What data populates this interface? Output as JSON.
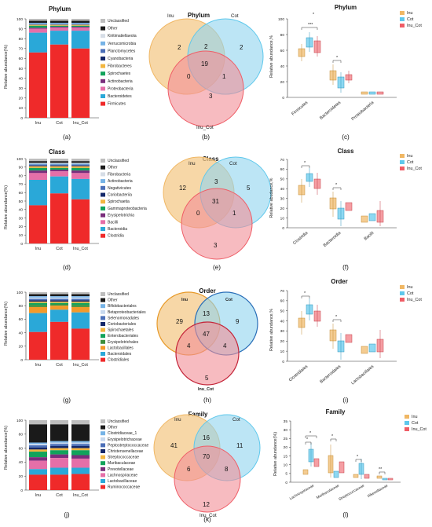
{
  "palette": {
    "inu": "#f0b764",
    "cot": "#5ec8ec",
    "inu_cot": "#ef5d66",
    "venn_inu": "#f4c98a",
    "venn_cot": "#8fd3ef",
    "venn_inu_cot": "#f28e96"
  },
  "box_legend": [
    "Inu",
    "Cot",
    "Inu_Cot"
  ],
  "bar_groups": [
    "Inu",
    "Cot",
    "Inu_Cot"
  ],
  "panels": {
    "a": {
      "label": "(a)",
      "title": "Phylum",
      "ylabel": "Relative abundance(%)",
      "yticks": [
        "0",
        "10",
        "20",
        "30",
        "40",
        "50",
        "60",
        "70",
        "80",
        "90",
        "100"
      ],
      "legend": [
        "Unclassified",
        "Other",
        "Kiritimatiellaeota",
        "Verrucomicrobia",
        "Planctomycetes",
        "Cyanobacteria",
        "Fibrobacteres",
        "Spirochaetes",
        "Actinobacteria",
        "Proteobacteria",
        "Bacteroidetes",
        "Firmicutes"
      ]
    },
    "b": {
      "label": "(b)",
      "title": "Phylum",
      "sets": [
        "Inu",
        "Cot",
        "Inu_Cot"
      ],
      "counts": {
        "only_a": "2",
        "only_b": "2",
        "only_c": "3",
        "ab": "2",
        "ac": "0",
        "bc": "1",
        "abc": "19"
      }
    },
    "c": {
      "label": "(c)",
      "title": "Phylum",
      "ylabel": "Relative abundance,%",
      "yticks": [
        "0",
        "20",
        "40",
        "60",
        "80",
        "100"
      ],
      "categories": [
        "Firmicutes",
        "Bacteroidetes",
        "Proteobacteria"
      ],
      "sig": [
        "***",
        "*",
        "*"
      ]
    },
    "d": {
      "label": "(d)",
      "title": "Class",
      "ylabel": "Relative abundance(%)",
      "yticks": [
        "0",
        "10",
        "20",
        "30",
        "40",
        "50",
        "60",
        "70",
        "80",
        "90",
        "100"
      ],
      "legend": [
        "Unclassified",
        "Other",
        "Fibrobacteria",
        "Actinobacteria",
        "Negativicutes",
        "Coriobacteriia",
        "Spirochaetia",
        "Gammaproteobacteria",
        "Erysipelotrichia",
        "Bacilli",
        "Bacteroidia",
        "Clostridia"
      ]
    },
    "e": {
      "label": "(e)",
      "title": "Class",
      "sets": [
        "Inu",
        "Cot",
        "Inu_Cot"
      ],
      "counts": {
        "only_a": "12",
        "only_b": "5",
        "only_c": "3",
        "ab": "3",
        "ac": "0",
        "bc": "1",
        "abc": "31"
      }
    },
    "f": {
      "label": "(f)",
      "title": "Class",
      "ylabel": "Relative abudance,%",
      "yticks": [
        "0",
        "10",
        "20",
        "30",
        "40",
        "50",
        "60",
        "70"
      ],
      "categories": [
        "Clostridia",
        "Bacteroidia",
        "Bacilli"
      ],
      "sig": [
        "*",
        "*"
      ]
    },
    "g": {
      "label": "(g)",
      "title": "Order",
      "ylabel": "Relative abundance(%)",
      "yticks": [
        "0",
        "20",
        "40",
        "60",
        "80",
        "100"
      ],
      "legend": [
        "Unclassified",
        "Other",
        "Bifidobacteriales",
        "Betaproteobacteriales",
        "Selenomonadales",
        "Coriobacteriales",
        "Spirochaetales",
        "Enterobacteriales",
        "Erysipelotrichales",
        "Lactobacillales",
        "Bacteroidales",
        "Clostridiales"
      ]
    },
    "h": {
      "label": "(h)",
      "title": "Order",
      "sets": [
        "Inu",
        "Cot",
        "Inu_Cot"
      ],
      "counts": {
        "only_a": "29",
        "only_b": "9",
        "only_c": "5",
        "ab": "13",
        "ac": "4",
        "bc": "4",
        "abc": "47"
      }
    },
    "i": {
      "label": "(i)",
      "title": "Order",
      "ylabel": "Relative abundance,%",
      "yticks": [
        "0",
        "10",
        "20",
        "30",
        "40",
        "50",
        "60",
        "70"
      ],
      "categories": [
        "Clostridiales",
        "Bacteroidales",
        "Lactobacillales"
      ],
      "sig": [
        "*",
        "*"
      ]
    },
    "j": {
      "label": "(j)",
      "title": "Family",
      "ylabel": "Relative abundance(%)",
      "yticks": [
        "0",
        "20",
        "40",
        "60",
        "80",
        "100"
      ],
      "legend": [
        "Unclassified",
        "Other",
        "Clostridiaceae_1",
        "Erysipelotrichaceae",
        "Peptostreptococcaceae",
        "Christensenellaceae",
        "Streptococcaceae",
        "Muribaculaceae",
        "Prevotellaceae",
        "Lachnospiraceae",
        "Lactobacillaceae",
        "Ruminococcaceae"
      ]
    },
    "k": {
      "label": "(k)",
      "title": "Family",
      "sets": [
        "Inu",
        "Cot",
        "Inu_Cot"
      ],
      "counts": {
        "only_a": "41",
        "only_b": "11",
        "only_c": "12",
        "ab": "16",
        "ac": "6",
        "bc": "8",
        "abc": "70"
      }
    },
    "l": {
      "label": "(l)",
      "title": "Family",
      "ylabel": "Relative abundance(%)",
      "yticks": [
        "0",
        "5",
        "10",
        "15",
        "20",
        "25",
        "30",
        "35"
      ],
      "categories": [
        "Lachnospiraceae",
        "Muribaculaceae",
        "Streptococcaceae",
        "Rikenellaceae"
      ],
      "sig": [
        "*",
        "*",
        "*",
        "*",
        "**"
      ]
    }
  },
  "stack_colors": {
    "phylum": [
      "#bdbdbd",
      "#1a1a1a",
      "#d6dde6",
      "#76b3e6",
      "#4b6fb8",
      "#14286a",
      "#f2b640",
      "#12a35b",
      "#7a2e7c",
      "#e56fa8",
      "#2aa8d8",
      "#ef2a2a"
    ],
    "class": [
      "#bdbdbd",
      "#1a1a1a",
      "#d6dde6",
      "#76b3e6",
      "#4b6fb8",
      "#14286a",
      "#f2b640",
      "#12a35b",
      "#7a2e7c",
      "#e56fa8",
      "#2aa8d8",
      "#ef2a2a"
    ],
    "order": [
      "#bdbdbd",
      "#1a1a1a",
      "#76b3e6",
      "#c8d9ee",
      "#4b6fb8",
      "#14286a",
      "#f2b640",
      "#12a35b",
      "#3d8f3d",
      "#f39a2a",
      "#2aa8d8",
      "#ef2a2a"
    ],
    "family": [
      "#bdbdbd",
      "#1a1a1a",
      "#76b3e6",
      "#c8d9ee",
      "#4b6fb8",
      "#14286a",
      "#f2b640",
      "#12a35b",
      "#7a2e7c",
      "#e56fa8",
      "#2aa8d8",
      "#ef2a2a"
    ]
  },
  "stacks": {
    "phylum": [
      [
        2,
        2,
        0,
        1,
        1,
        0,
        1,
        2,
        1,
        4,
        20,
        66
      ],
      [
        2,
        2,
        0,
        1,
        1,
        0,
        1,
        1,
        1,
        3,
        14,
        74
      ],
      [
        2,
        2,
        0,
        1,
        1,
        0,
        1,
        1,
        1,
        3,
        18,
        70
      ]
    ],
    "class": [
      [
        3,
        2,
        1,
        1,
        1,
        1,
        2,
        3,
        3,
        8,
        30,
        45
      ],
      [
        3,
        2,
        1,
        1,
        1,
        1,
        2,
        2,
        2,
        6,
        20,
        59
      ],
      [
        3,
        2,
        1,
        1,
        1,
        1,
        2,
        3,
        3,
        7,
        24,
        52
      ]
    ],
    "order": [
      [
        3,
        3,
        2,
        2,
        2,
        2,
        2,
        3,
        3,
        9,
        28,
        41
      ],
      [
        3,
        3,
        2,
        2,
        2,
        2,
        2,
        2,
        2,
        6,
        18,
        56
      ],
      [
        3,
        3,
        2,
        2,
        2,
        2,
        2,
        3,
        3,
        8,
        24,
        46
      ]
    ],
    "family": [
      [
        6,
        26,
        2,
        2,
        3,
        3,
        3,
        8,
        5,
        12,
        8,
        22
      ],
      [
        6,
        24,
        2,
        2,
        3,
        3,
        3,
        6,
        5,
        14,
        10,
        22
      ],
      [
        6,
        24,
        2,
        2,
        3,
        3,
        3,
        7,
        5,
        13,
        9,
        23
      ]
    ]
  }
}
